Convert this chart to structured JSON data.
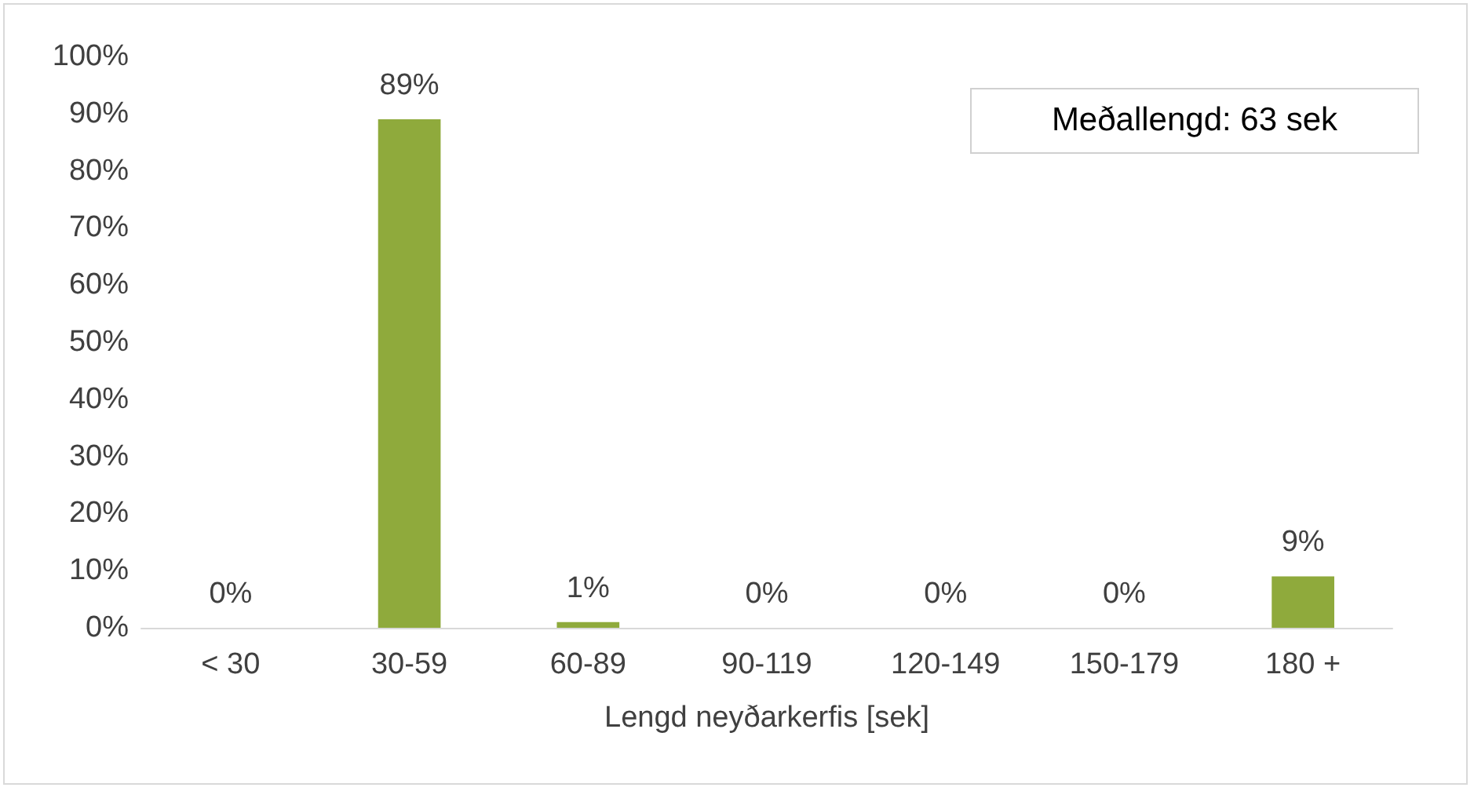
{
  "chart_data": {
    "type": "bar",
    "xlabel": "Lengd neyðarkerfis [sek]",
    "categories": [
      "< 30",
      "30-59",
      "60-89",
      "90-119",
      "120-149",
      "150-179",
      "180 +"
    ],
    "values": [
      0,
      89,
      1,
      0,
      0,
      0,
      9
    ],
    "value_labels": [
      "0%",
      "89%",
      "1%",
      "0%",
      "0%",
      "0%",
      "9%"
    ],
    "color": "#8faa3c",
    "ylim": [
      0,
      100
    ],
    "yticks": [
      {
        "value": 0,
        "label": "0%"
      },
      {
        "value": 10,
        "label": "10%"
      },
      {
        "value": 20,
        "label": "20%"
      },
      {
        "value": 30,
        "label": "30%"
      },
      {
        "value": 40,
        "label": "40%"
      },
      {
        "value": 50,
        "label": "50%"
      },
      {
        "value": 60,
        "label": "60%"
      },
      {
        "value": 70,
        "label": "70%"
      },
      {
        "value": 80,
        "label": "80%"
      },
      {
        "value": 90,
        "label": "90%"
      },
      {
        "value": 100,
        "label": "100%"
      }
    ],
    "annotations": [
      "Meðallengd: 63 sek"
    ],
    "grid": false
  }
}
